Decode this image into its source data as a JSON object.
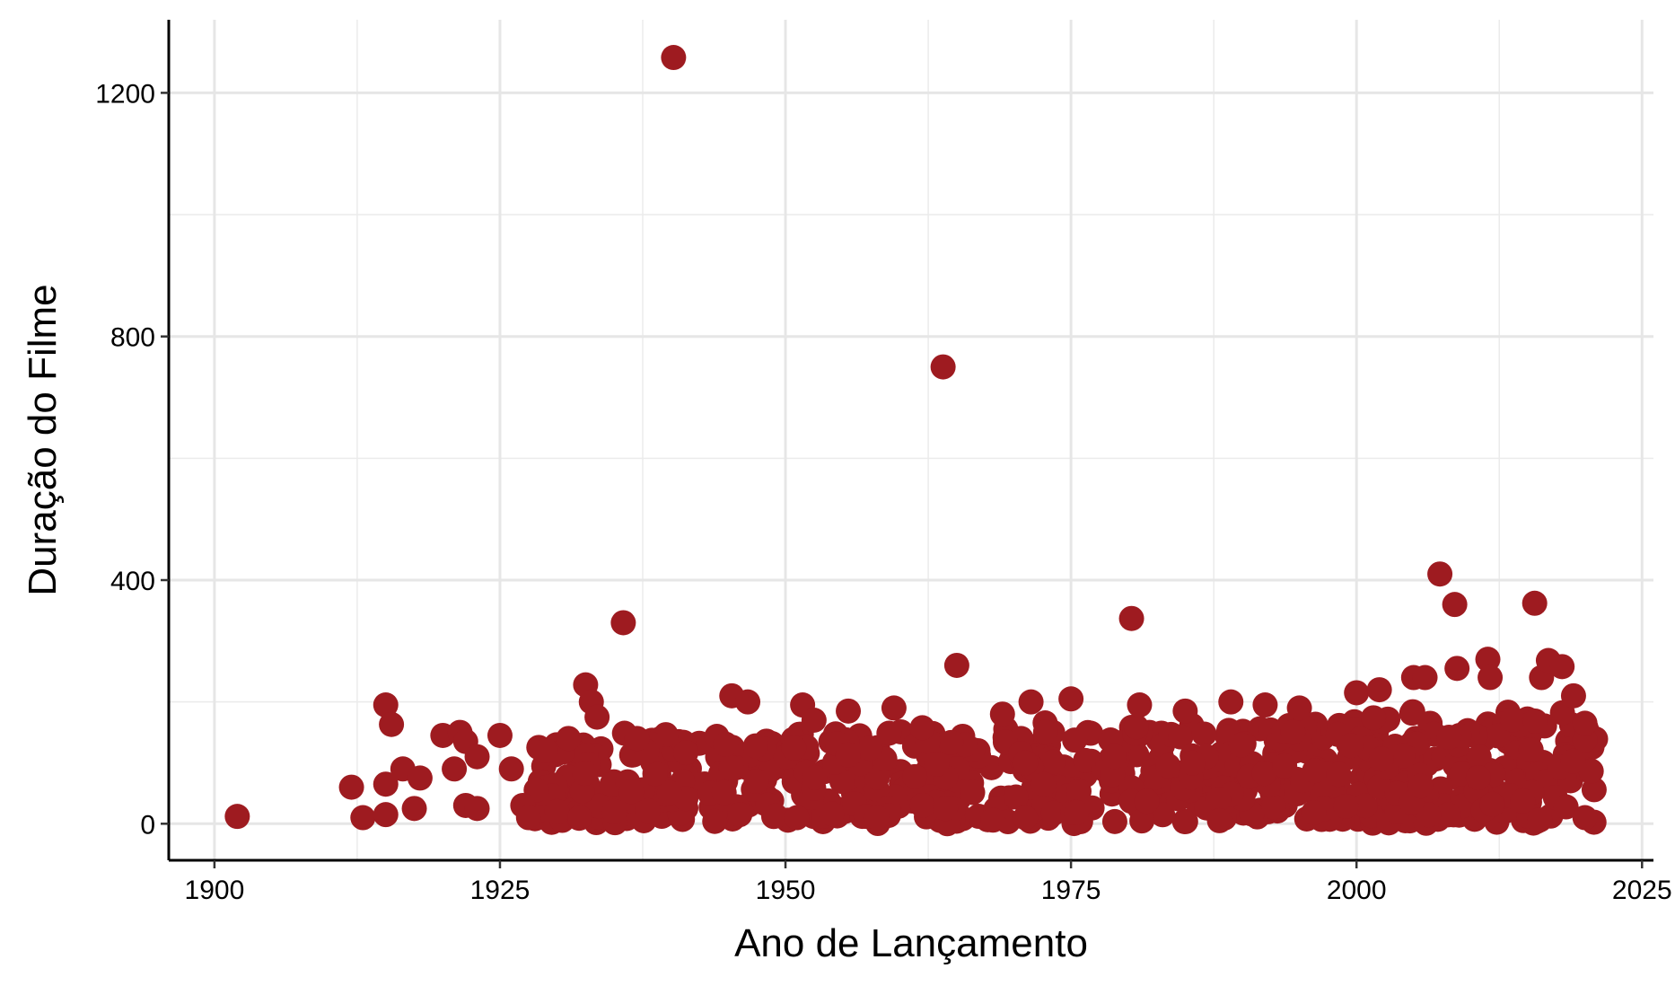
{
  "chart_data": {
    "type": "scatter",
    "title": "",
    "xlabel": "Ano de Lançamento",
    "ylabel": "Duração do Filme",
    "xlim": [
      1896,
      2026
    ],
    "ylim": [
      -60,
      1320
    ],
    "x_ticks": [
      1900,
      1925,
      1950,
      1975,
      2000,
      2025
    ],
    "y_ticks": [
      0,
      400,
      800,
      1200
    ],
    "grid": true,
    "point_color": "#9E1B20",
    "dense_region": {
      "x_range": [
        1928,
        2021
      ],
      "y_range": [
        0,
        150
      ]
    },
    "points": [
      {
        "x": 1902,
        "y": 12
      },
      {
        "x": 1912,
        "y": 60
      },
      {
        "x": 1913,
        "y": 10
      },
      {
        "x": 1915,
        "y": 195
      },
      {
        "x": 1915,
        "y": 65
      },
      {
        "x": 1915,
        "y": 15
      },
      {
        "x": 1915.5,
        "y": 163
      },
      {
        "x": 1916.5,
        "y": 90
      },
      {
        "x": 1917.5,
        "y": 25
      },
      {
        "x": 1918,
        "y": 75
      },
      {
        "x": 1920,
        "y": 145
      },
      {
        "x": 1921,
        "y": 90
      },
      {
        "x": 1921.5,
        "y": 150
      },
      {
        "x": 1922,
        "y": 135
      },
      {
        "x": 1922,
        "y": 30
      },
      {
        "x": 1923,
        "y": 25
      },
      {
        "x": 1923,
        "y": 110
      },
      {
        "x": 1925,
        "y": 145
      },
      {
        "x": 1926,
        "y": 90
      },
      {
        "x": 1927,
        "y": 30
      },
      {
        "x": 1927.5,
        "y": 10
      },
      {
        "x": 1929,
        "y": 120
      },
      {
        "x": 1930,
        "y": 20
      },
      {
        "x": 1931,
        "y": 140
      },
      {
        "x": 1932,
        "y": 10
      },
      {
        "x": 1932.5,
        "y": 228
      },
      {
        "x": 1933,
        "y": 200
      },
      {
        "x": 1933.5,
        "y": 175
      },
      {
        "x": 1935,
        "y": 20
      },
      {
        "x": 1935.8,
        "y": 330
      },
      {
        "x": 1937,
        "y": 140
      },
      {
        "x": 1940.2,
        "y": 1258
      },
      {
        "x": 1945.3,
        "y": 210
      },
      {
        "x": 1946.7,
        "y": 200
      },
      {
        "x": 1946,
        "y": 15
      },
      {
        "x": 1951.5,
        "y": 195
      },
      {
        "x": 1951,
        "y": 10
      },
      {
        "x": 1952.5,
        "y": 170
      },
      {
        "x": 1955.5,
        "y": 185
      },
      {
        "x": 1958,
        "y": 10
      },
      {
        "x": 1959.5,
        "y": 190
      },
      {
        "x": 1962,
        "y": 30
      },
      {
        "x": 1963.8,
        "y": 750
      },
      {
        "x": 1964,
        "y": 25
      },
      {
        "x": 1965,
        "y": 260
      },
      {
        "x": 1969,
        "y": 180
      },
      {
        "x": 1971,
        "y": 10
      },
      {
        "x": 1971.5,
        "y": 200
      },
      {
        "x": 1975,
        "y": 205
      },
      {
        "x": 1980.3,
        "y": 337
      },
      {
        "x": 1981,
        "y": 195
      },
      {
        "x": 1985,
        "y": 185
      },
      {
        "x": 1988,
        "y": 5
      },
      {
        "x": 1989,
        "y": 200
      },
      {
        "x": 1992,
        "y": 195
      },
      {
        "x": 1995,
        "y": 190
      },
      {
        "x": 2000,
        "y": 215
      },
      {
        "x": 2002,
        "y": 220
      },
      {
        "x": 2005,
        "y": 240
      },
      {
        "x": 2006,
        "y": 240
      },
      {
        "x": 2007.3,
        "y": 410
      },
      {
        "x": 2008.6,
        "y": 360
      },
      {
        "x": 2008.8,
        "y": 255
      },
      {
        "x": 2011.5,
        "y": 270
      },
      {
        "x": 2011.7,
        "y": 240
      },
      {
        "x": 2015.6,
        "y": 362
      },
      {
        "x": 2016.2,
        "y": 240
      },
      {
        "x": 2016.8,
        "y": 268
      },
      {
        "x": 2018,
        "y": 258
      },
      {
        "x": 2019,
        "y": 210
      },
      {
        "x": 2020,
        "y": 165
      },
      {
        "x": 2020,
        "y": 10
      }
    ]
  }
}
